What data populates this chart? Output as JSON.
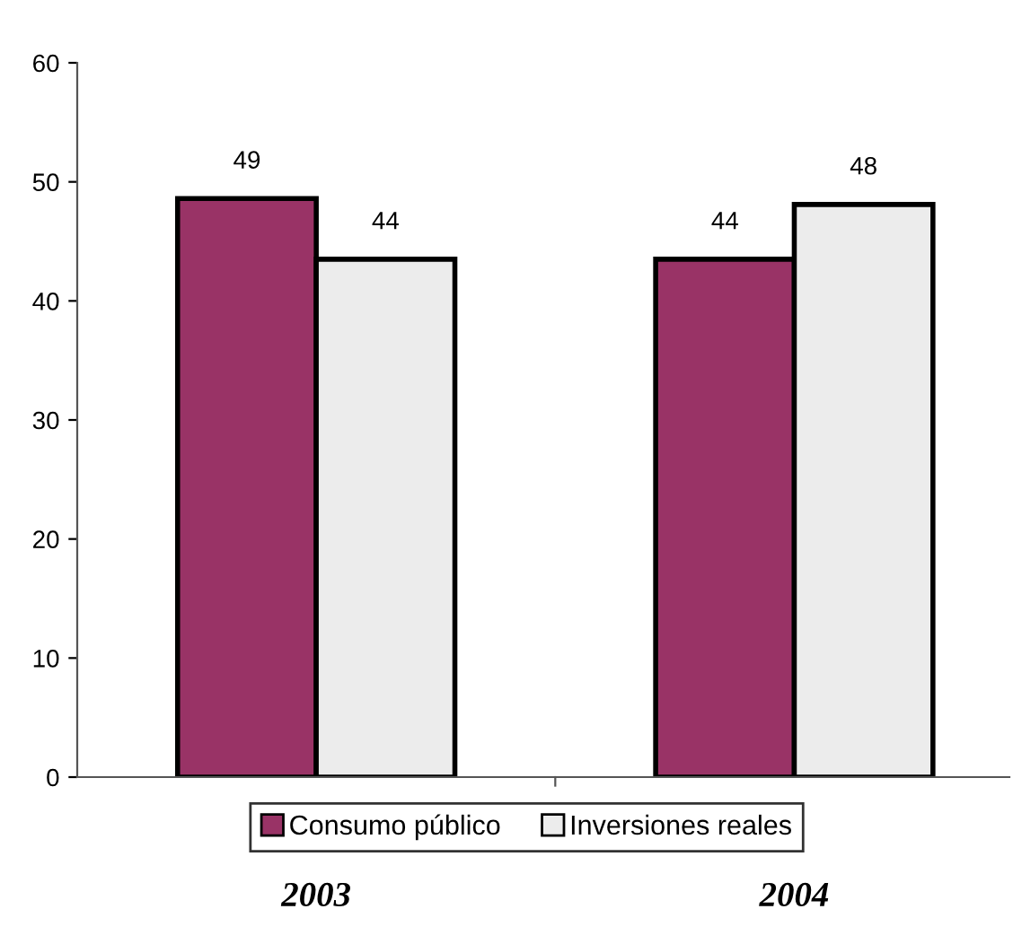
{
  "chart_data": {
    "type": "bar",
    "categories": [
      "2003",
      "2004"
    ],
    "series": [
      {
        "name": "Consumo público",
        "color": "#993366",
        "values": [
          48.6,
          43.5
        ],
        "value_labels": [
          "49",
          "44"
        ]
      },
      {
        "name": "Inversiones reales",
        "color": "#ececec",
        "values": [
          43.5,
          48.1
        ],
        "value_labels": [
          "44",
          "48"
        ]
      }
    ],
    "ylim": [
      0,
      60
    ],
    "yticks": [
      0,
      10,
      20,
      30,
      40,
      50,
      60
    ],
    "grid": false,
    "legend": "bottom"
  }
}
